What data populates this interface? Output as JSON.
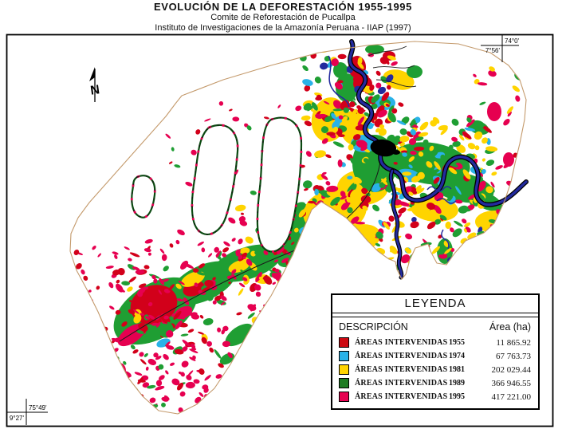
{
  "header": {
    "title": "EVOLUCIÓN DE LA DEFORESTACIÓN 1955-1995",
    "subtitle1": "Comite de Reforestación de Pucallpa",
    "subtitle2": "Instituto de Investigaciones de la Amazonía Peruana - IIAP (1997)"
  },
  "map": {
    "north_symbol": "N",
    "coords": {
      "top_right_lon": "74°0'",
      "top_right_lat": "7°56'",
      "bottom_left_lon": "75°49'",
      "bottom_left_lat": "9°27'"
    }
  },
  "legend": {
    "title": "LEYENDA",
    "col_description": "DESCRIPCIÓN",
    "col_area": "Área (ha)",
    "rows": [
      {
        "label": "ÁREAS INTERVENIDAS",
        "year": "1955",
        "area": "11 865.92",
        "color": "#cc0a12"
      },
      {
        "label": "ÁREAS INTERVENIDAS",
        "year": "1974",
        "area": "67 763.73",
        "color": "#29b2e8"
      },
      {
        "label": "ÁREAS INTERVENIDAS",
        "year": "1981",
        "area": "202 029.44",
        "color": "#ffd400"
      },
      {
        "label": "ÁREAS INTERVENIDAS",
        "year": "1989",
        "area": "366 946.55",
        "color": "#1e7c22"
      },
      {
        "label": "ÁREAS INTERVENIDAS",
        "year": "1995",
        "area": "417 221.00",
        "color": "#e60050"
      }
    ]
  },
  "chart_data": {
    "type": "table",
    "title": "EVOLUCIÓN DE LA DEFORESTACIÓN 1955-1995",
    "categories": [
      "1955",
      "1974",
      "1981",
      "1989",
      "1995"
    ],
    "values": [
      11865.92,
      67763.73,
      202029.44,
      366946.55,
      417221.0
    ],
    "ylabel": "Área (ha)"
  }
}
